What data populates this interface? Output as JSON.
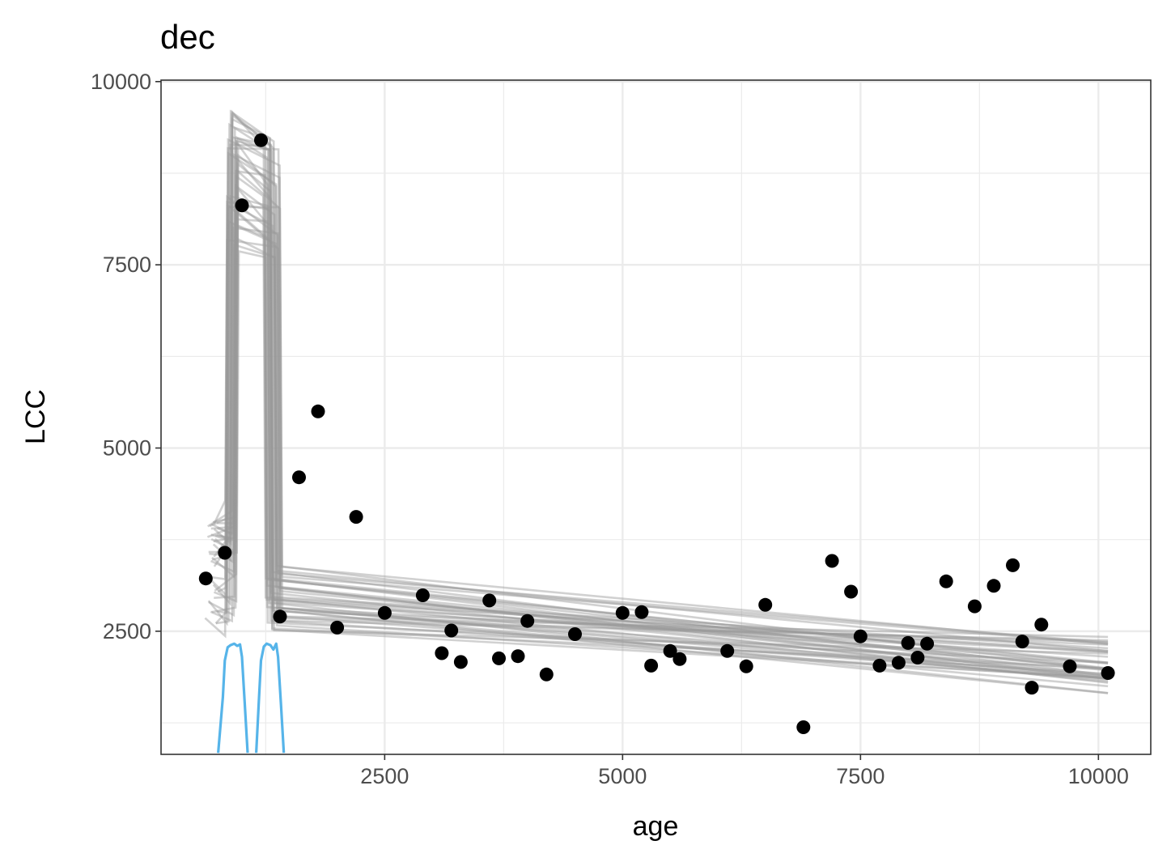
{
  "chart_data": {
    "type": "scatter",
    "title": "dec",
    "xlabel": "age",
    "ylabel": "LCC",
    "xlim": [
      150,
      10550
    ],
    "ylim": [
      820,
      10020
    ],
    "x_ticks": [
      2500,
      5000,
      7500,
      10000
    ],
    "y_ticks": [
      2500,
      5000,
      7500,
      10000
    ],
    "grid": true,
    "legend": "none",
    "colors": {
      "points": "#000000",
      "ensemble_lines": "#9a9a9a",
      "density_curves": "#56b4e9",
      "grid": "#ebebeb",
      "panel_border": "#333333"
    },
    "points": [
      {
        "x": 620,
        "y": 3220
      },
      {
        "x": 820,
        "y": 3570
      },
      {
        "x": 1000,
        "y": 8310
      },
      {
        "x": 1200,
        "y": 9200
      },
      {
        "x": 1400,
        "y": 2700
      },
      {
        "x": 1600,
        "y": 4600
      },
      {
        "x": 1800,
        "y": 5500
      },
      {
        "x": 2000,
        "y": 2550
      },
      {
        "x": 2200,
        "y": 4060
      },
      {
        "x": 2500,
        "y": 2750
      },
      {
        "x": 2900,
        "y": 2990
      },
      {
        "x": 3100,
        "y": 2200
      },
      {
        "x": 3200,
        "y": 2510
      },
      {
        "x": 3300,
        "y": 2080
      },
      {
        "x": 3600,
        "y": 2920
      },
      {
        "x": 3700,
        "y": 2130
      },
      {
        "x": 3900,
        "y": 2160
      },
      {
        "x": 4000,
        "y": 2640
      },
      {
        "x": 4200,
        "y": 1910
      },
      {
        "x": 4500,
        "y": 2460
      },
      {
        "x": 5000,
        "y": 2750
      },
      {
        "x": 5200,
        "y": 2760
      },
      {
        "x": 5300,
        "y": 2030
      },
      {
        "x": 5500,
        "y": 2230
      },
      {
        "x": 5600,
        "y": 2120
      },
      {
        "x": 6100,
        "y": 2230
      },
      {
        "x": 6300,
        "y": 2020
      },
      {
        "x": 6500,
        "y": 2860
      },
      {
        "x": 6900,
        "y": 1190
      },
      {
        "x": 7200,
        "y": 3460
      },
      {
        "x": 7400,
        "y": 3040
      },
      {
        "x": 7500,
        "y": 2430
      },
      {
        "x": 7700,
        "y": 2030
      },
      {
        "x": 7900,
        "y": 2070
      },
      {
        "x": 8000,
        "y": 2340
      },
      {
        "x": 8100,
        "y": 2140
      },
      {
        "x": 8200,
        "y": 2330
      },
      {
        "x": 8400,
        "y": 3180
      },
      {
        "x": 8700,
        "y": 2840
      },
      {
        "x": 8900,
        "y": 3120
      },
      {
        "x": 9100,
        "y": 3400
      },
      {
        "x": 9200,
        "y": 2360
      },
      {
        "x": 9300,
        "y": 1730
      },
      {
        "x": 9400,
        "y": 2590
      },
      {
        "x": 9700,
        "y": 2020
      },
      {
        "x": 10100,
        "y": 1930
      }
    ],
    "ensemble": {
      "count": 40,
      "x_start": 600,
      "x_end": 10100,
      "start_y_range": [
        2600,
        4000
      ],
      "breakpoint_1_x_range": [
        820,
        960
      ],
      "breakpoint_2_x_range": [
        1220,
        1400
      ],
      "plateau_y_range": [
        7600,
        9600
      ],
      "post_break_y_range": [
        2500,
        3400
      ],
      "end_y_range": [
        1650,
        2500
      ]
    },
    "density_curves": [
      {
        "x": [
          750,
          800,
          820,
          850,
          880,
          920,
          950,
          980,
          1000,
          1030,
          1060
        ],
        "y": [
          840,
          1600,
          2100,
          2280,
          2310,
          2330,
          2300,
          2320,
          2150,
          1500,
          840
        ]
      },
      {
        "x": [
          1150,
          1180,
          1200,
          1230,
          1260,
          1300,
          1330,
          1360,
          1380,
          1410,
          1440
        ],
        "y": [
          840,
          1600,
          2100,
          2290,
          2330,
          2310,
          2250,
          2330,
          2150,
          1500,
          840
        ]
      }
    ]
  }
}
